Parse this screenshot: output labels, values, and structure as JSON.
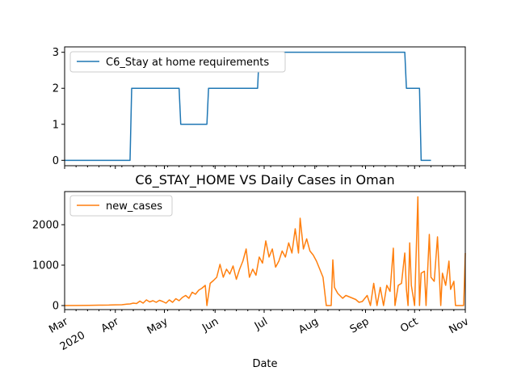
{
  "title": "C6_STAY_HOME VS Daily Cases in Oman",
  "xlabel": "Date",
  "x_range": [
    "2020-03-01",
    "2020-11-01"
  ],
  "x_ticks": [
    {
      "label": "Mar",
      "date": "2020-03-01"
    },
    {
      "label": "Apr",
      "date": "2020-04-01"
    },
    {
      "label": "May",
      "date": "2020-05-01"
    },
    {
      "label": "Jun",
      "date": "2020-06-01"
    },
    {
      "label": "Jul",
      "date": "2020-07-01"
    },
    {
      "label": "Aug",
      "date": "2020-08-01"
    },
    {
      "label": "Sep",
      "date": "2020-09-01"
    },
    {
      "label": "Oct",
      "date": "2020-10-01"
    },
    {
      "label": "Nov",
      "date": "2020-11-01"
    }
  ],
  "x_year_label": "2020",
  "chart_data": [
    {
      "type": "line",
      "grid": false,
      "legend_position": "top-left",
      "ylim": [
        -0.15,
        3.15
      ],
      "y_ticks": [
        0,
        1,
        2,
        3
      ],
      "series": [
        {
          "name": "C6_Stay at home requirements",
          "color": "#1f77b4",
          "points": [
            [
              "2020-03-01",
              0
            ],
            [
              "2020-04-10",
              0
            ],
            [
              "2020-04-11",
              2
            ],
            [
              "2020-05-10",
              2
            ],
            [
              "2020-05-11",
              1
            ],
            [
              "2020-05-27",
              1
            ],
            [
              "2020-05-28",
              2
            ],
            [
              "2020-06-27",
              2
            ],
            [
              "2020-06-28",
              3
            ],
            [
              "2020-09-25",
              3
            ],
            [
              "2020-09-26",
              2
            ],
            [
              "2020-10-04",
              2
            ],
            [
              "2020-10-05",
              0
            ],
            [
              "2020-10-11",
              0
            ]
          ]
        }
      ]
    },
    {
      "type": "line",
      "grid": false,
      "legend_position": "top-left",
      "ylim": [
        -100,
        2820
      ],
      "y_ticks": [
        0,
        1000,
        2000
      ],
      "series": [
        {
          "name": "new_cases",
          "color": "#ff7f0e",
          "points": [
            [
              "2020-03-01",
              0
            ],
            [
              "2020-03-10",
              2
            ],
            [
              "2020-03-16",
              5
            ],
            [
              "2020-03-22",
              10
            ],
            [
              "2020-03-28",
              12
            ],
            [
              "2020-04-01",
              18
            ],
            [
              "2020-04-05",
              20
            ],
            [
              "2020-04-08",
              35
            ],
            [
              "2020-04-10",
              40
            ],
            [
              "2020-04-12",
              60
            ],
            [
              "2020-04-14",
              50
            ],
            [
              "2020-04-16",
              110
            ],
            [
              "2020-04-18",
              60
            ],
            [
              "2020-04-20",
              140
            ],
            [
              "2020-04-22",
              90
            ],
            [
              "2020-04-24",
              120
            ],
            [
              "2020-04-26",
              80
            ],
            [
              "2020-04-28",
              130
            ],
            [
              "2020-04-30",
              100
            ],
            [
              "2020-05-02",
              60
            ],
            [
              "2020-05-04",
              140
            ],
            [
              "2020-05-06",
              80
            ],
            [
              "2020-05-08",
              170
            ],
            [
              "2020-05-10",
              120
            ],
            [
              "2020-05-12",
              200
            ],
            [
              "2020-05-14",
              250
            ],
            [
              "2020-05-16",
              180
            ],
            [
              "2020-05-18",
              330
            ],
            [
              "2020-05-20",
              280
            ],
            [
              "2020-05-22",
              380
            ],
            [
              "2020-05-24",
              430
            ],
            [
              "2020-05-26",
              500
            ],
            [
              "2020-05-27",
              0
            ],
            [
              "2020-05-29",
              550
            ],
            [
              "2020-05-31",
              620
            ],
            [
              "2020-06-02",
              700
            ],
            [
              "2020-06-04",
              1020
            ],
            [
              "2020-06-06",
              700
            ],
            [
              "2020-06-08",
              900
            ],
            [
              "2020-06-10",
              780
            ],
            [
              "2020-06-12",
              980
            ],
            [
              "2020-06-14",
              650
            ],
            [
              "2020-06-16",
              900
            ],
            [
              "2020-06-18",
              1100
            ],
            [
              "2020-06-20",
              1400
            ],
            [
              "2020-06-22",
              700
            ],
            [
              "2020-06-24",
              900
            ],
            [
              "2020-06-26",
              750
            ],
            [
              "2020-06-28",
              1200
            ],
            [
              "2020-06-30",
              1050
            ],
            [
              "2020-07-02",
              1600
            ],
            [
              "2020-07-04",
              1200
            ],
            [
              "2020-07-06",
              1400
            ],
            [
              "2020-07-08",
              950
            ],
            [
              "2020-07-10",
              1100
            ],
            [
              "2020-07-12",
              1350
            ],
            [
              "2020-07-14",
              1200
            ],
            [
              "2020-07-16",
              1550
            ],
            [
              "2020-07-18",
              1300
            ],
            [
              "2020-07-20",
              1900
            ],
            [
              "2020-07-22",
              1300
            ],
            [
              "2020-07-23",
              2160
            ],
            [
              "2020-07-25",
              1400
            ],
            [
              "2020-07-27",
              1650
            ],
            [
              "2020-07-29",
              1350
            ],
            [
              "2020-07-31",
              1250
            ],
            [
              "2020-08-02",
              1100
            ],
            [
              "2020-08-04",
              900
            ],
            [
              "2020-08-06",
              700
            ],
            [
              "2020-08-08",
              0
            ],
            [
              "2020-08-11",
              0
            ],
            [
              "2020-08-12",
              1130
            ],
            [
              "2020-08-13",
              450
            ],
            [
              "2020-08-15",
              300
            ],
            [
              "2020-08-18",
              180
            ],
            [
              "2020-08-20",
              250
            ],
            [
              "2020-08-23",
              200
            ],
            [
              "2020-08-26",
              150
            ],
            [
              "2020-08-28",
              80
            ],
            [
              "2020-08-30",
              100
            ],
            [
              "2020-09-02",
              250
            ],
            [
              "2020-09-04",
              0
            ],
            [
              "2020-09-06",
              550
            ],
            [
              "2020-09-08",
              0
            ],
            [
              "2020-09-10",
              450
            ],
            [
              "2020-09-12",
              0
            ],
            [
              "2020-09-14",
              500
            ],
            [
              "2020-09-16",
              350
            ],
            [
              "2020-09-18",
              1420
            ],
            [
              "2020-09-19",
              0
            ],
            [
              "2020-09-21",
              500
            ],
            [
              "2020-09-23",
              550
            ],
            [
              "2020-09-25",
              1300
            ],
            [
              "2020-09-26",
              400
            ],
            [
              "2020-09-27",
              0
            ],
            [
              "2020-09-28",
              1550
            ],
            [
              "2020-09-29",
              500
            ],
            [
              "2020-10-01",
              0
            ],
            [
              "2020-10-03",
              2690
            ],
            [
              "2020-10-04",
              0
            ],
            [
              "2020-10-05",
              800
            ],
            [
              "2020-10-07",
              850
            ],
            [
              "2020-10-08",
              0
            ],
            [
              "2020-10-10",
              1760
            ],
            [
              "2020-10-11",
              700
            ],
            [
              "2020-10-13",
              600
            ],
            [
              "2020-10-15",
              1700
            ],
            [
              "2020-10-17",
              0
            ],
            [
              "2020-10-18",
              800
            ],
            [
              "2020-10-20",
              500
            ],
            [
              "2020-10-22",
              1100
            ],
            [
              "2020-10-23",
              400
            ],
            [
              "2020-10-25",
              600
            ],
            [
              "2020-10-26",
              0
            ],
            [
              "2020-10-31",
              0
            ],
            [
              "2020-11-01",
              1300
            ]
          ]
        }
      ]
    }
  ]
}
